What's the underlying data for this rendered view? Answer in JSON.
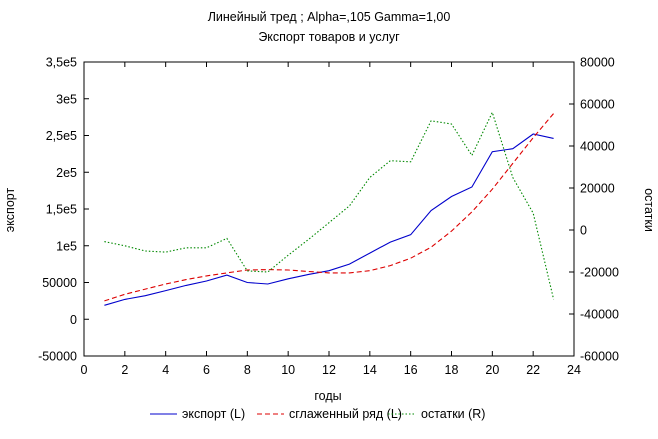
{
  "chart_data": {
    "type": "line",
    "title": "Линейный тред ; Alpha=,105 Gamma=1,00",
    "subtitle": "Экспорт товаров и услуг",
    "xlabel": "годы",
    "ylabel_left": "экспорт",
    "ylabel_right": "остатки",
    "xlim": [
      0,
      24
    ],
    "ylim_left": [
      -50000,
      350000
    ],
    "ylim_right": [
      -60000,
      80000
    ],
    "x_ticks": [
      0,
      2,
      4,
      6,
      8,
      10,
      12,
      14,
      16,
      18,
      20,
      22,
      24
    ],
    "x_tick_labels": [
      "0",
      "2",
      "4",
      "6",
      "8",
      "10",
      "12",
      "14",
      "16",
      "18",
      "20",
      "22",
      "24"
    ],
    "y_left_ticks": [
      -50000,
      0,
      50000,
      100000,
      150000,
      200000,
      250000,
      300000,
      350000
    ],
    "y_left_tick_labels": [
      "-50000",
      "0",
      "50000",
      "1e5",
      "1,5e5",
      "2e5",
      "2,5e5",
      "3e5",
      "3,5e5"
    ],
    "y_right_ticks": [
      -60000,
      -40000,
      -20000,
      0,
      20000,
      40000,
      60000,
      80000
    ],
    "y_right_tick_labels": [
      "-60000",
      "-40000",
      "-20000",
      "0",
      "20000",
      "40000",
      "60000",
      "80000"
    ],
    "grid": false,
    "legend_position": "bottom",
    "series": [
      {
        "name": "экспорт (L)",
        "axis": "left",
        "color": "#0000cc",
        "dash": "solid",
        "x": [
          1,
          2,
          3,
          4,
          5,
          6,
          7,
          8,
          9,
          10,
          11,
          12,
          13,
          14,
          15,
          16,
          17,
          18,
          19,
          20,
          21,
          22,
          23
        ],
        "values": [
          19000,
          27000,
          32000,
          39000,
          46000,
          52000,
          60000,
          50000,
          48000,
          55000,
          61000,
          66000,
          75000,
          90000,
          105000,
          115000,
          148000,
          167000,
          180000,
          228000,
          232000,
          252000,
          246000
        ]
      },
      {
        "name": "сглаженный ряд (L)",
        "axis": "left",
        "color": "#dd0000",
        "dash": "dashed",
        "x": [
          1,
          2,
          3,
          4,
          5,
          6,
          7,
          8,
          9,
          10,
          11,
          12,
          13,
          14,
          15,
          16,
          17,
          18,
          19,
          20,
          21,
          22,
          23
        ],
        "values": [
          25000,
          34000,
          41000,
          48000,
          54000,
          59000,
          63000,
          67000,
          67500,
          67000,
          65000,
          63000,
          63000,
          66000,
          73000,
          83000,
          98000,
          120000,
          146000,
          177000,
          212000,
          247000,
          280000
        ]
      },
      {
        "name": "остатки (R)",
        "axis": "right",
        "color": "#008800",
        "dash": "dotted",
        "x": [
          1,
          2,
          3,
          4,
          5,
          6,
          7,
          8,
          9,
          10,
          11,
          12,
          13,
          14,
          15,
          16,
          17,
          18,
          19,
          20,
          21,
          22,
          23
        ],
        "values": [
          -5500,
          -7500,
          -10000,
          -10500,
          -8500,
          -8500,
          -4000,
          -19500,
          -20000,
          -12000,
          -4500,
          3500,
          11500,
          25000,
          33000,
          32500,
          52000,
          50500,
          35500,
          56000,
          25000,
          8000,
          -33000
        ]
      }
    ]
  }
}
